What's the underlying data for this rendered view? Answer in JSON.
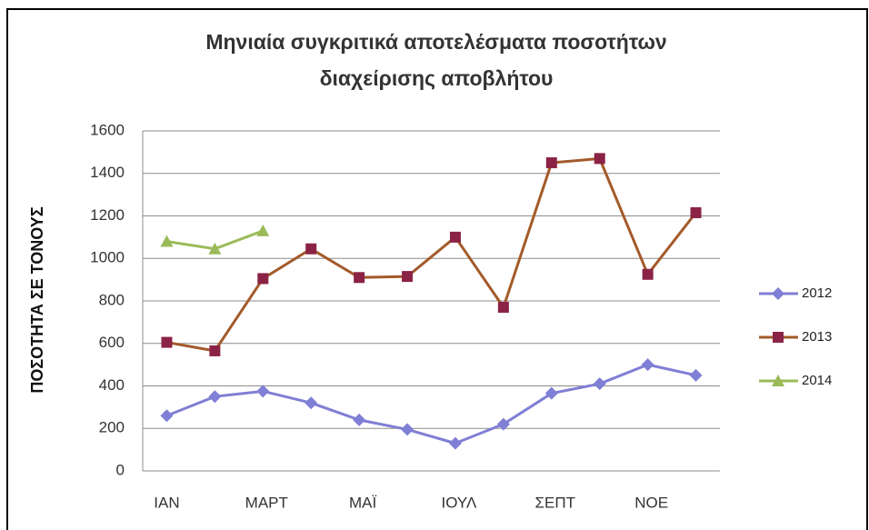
{
  "chart_data": {
    "type": "line",
    "title_lines": [
      "Μηνιαία συγκριτικά αποτελέσματα ποσοτήτων",
      "διαχείρισης αποβλήτου"
    ],
    "y_label": "ΠΟΣΟΤΗΤΑ ΣΕ ΤΟΝΟΥΣ",
    "categories": [
      "ΙΑΝ",
      null,
      "ΜΑΡΤ",
      null,
      "ΜΑΪ",
      null,
      "ΙΟΥΛ",
      null,
      "ΣΕΠΤ",
      null,
      "ΝΟΕ",
      null
    ],
    "series": [
      {
        "name": "2012",
        "color": "#7f7fd5",
        "marker": "diamond",
        "marker_color": "#7f7fd5",
        "values": [
          260,
          350,
          375,
          320,
          240,
          195,
          130,
          220,
          365,
          410,
          500,
          450
        ]
      },
      {
        "name": "2013",
        "color": "#a35a2a",
        "marker": "square",
        "marker_color": "#8b2346",
        "values": [
          605,
          565,
          905,
          1045,
          910,
          915,
          1100,
          770,
          1450,
          1470,
          925,
          1215
        ]
      },
      {
        "name": "2014",
        "color": "#9bbb59",
        "marker": "triangle",
        "marker_color": "#9bbb59",
        "values": [
          1080,
          1045,
          1130,
          null,
          null,
          null,
          null,
          null,
          null,
          null,
          null,
          null
        ]
      }
    ],
    "ylim": [
      0,
      1600
    ],
    "yticks": [
      0,
      200,
      400,
      600,
      800,
      1000,
      1200,
      1400,
      1600
    ],
    "grid": true,
    "legend": "right"
  }
}
